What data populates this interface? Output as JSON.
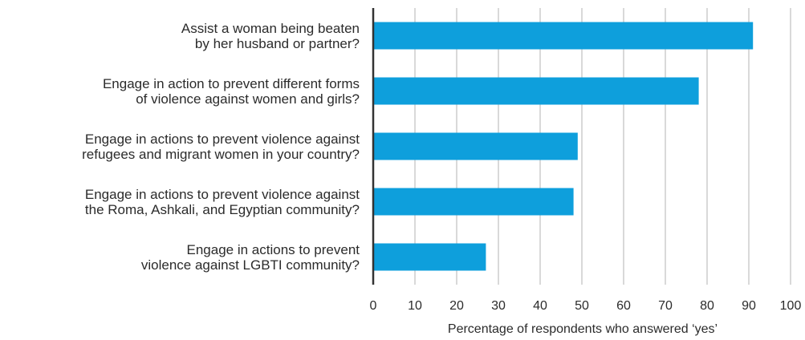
{
  "chart_data": {
    "type": "bar",
    "orientation": "horizontal",
    "title": "",
    "categories": [
      [
        "Assist a woman being beaten",
        "by her husband or partner?"
      ],
      [
        "Engage in action to prevent different forms",
        "of violence against women and girls?"
      ],
      [
        "Engage in actions to prevent violence against",
        "refugees and migrant women in your country?"
      ],
      [
        "Engage in actions to prevent violence against",
        "the Roma, Ashkali, and Egyptian community?"
      ],
      [
        "Engage in actions to prevent",
        "violence against LGBTI community?"
      ]
    ],
    "values": [
      91,
      78,
      49,
      48,
      27
    ],
    "xlabel": "Percentage of respondents who answered ‘yes’",
    "ylabel": "",
    "xlim": [
      0,
      100
    ],
    "xticks": [
      "0",
      "10",
      "20",
      "30",
      "40",
      "50",
      "60",
      "70",
      "80",
      "90",
      "100"
    ],
    "grid": "vertical",
    "bar_color": "#0e9fdc",
    "grid_color": "#b3b3b3",
    "axis_color": "#333333"
  }
}
